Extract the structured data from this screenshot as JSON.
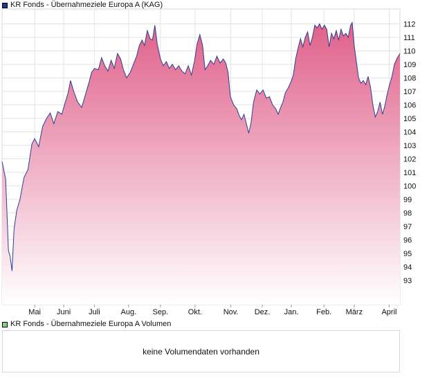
{
  "legend": {
    "price_label": "KR Fonds - Übernahmeziele Europa A (KAG)",
    "volume_label": "KR Fonds - Übernahmeziele Europa A Volumen"
  },
  "volume_panel": {
    "message": "keine Volumendaten vorhanden"
  },
  "colors": {
    "line": "#2a3f8f",
    "fill_top": "#e0608a",
    "fill_bottom": "#ffffff",
    "grid": "#e3e3e3"
  },
  "chart_data": {
    "type": "area",
    "title": "KR Fonds - Übernahmeziele Europa A (KAG)",
    "ylim": [
      91.2,
      113.1
    ],
    "y_ticks": [
      93,
      94,
      95,
      96,
      97,
      98,
      99,
      100,
      101,
      102,
      103,
      104,
      105,
      106,
      107,
      108,
      109,
      110,
      111,
      112
    ],
    "x_ticks": [
      {
        "label": "Mai",
        "t": 0.082
      },
      {
        "label": "Juni",
        "t": 0.155
      },
      {
        "label": "Juli",
        "t": 0.232
      },
      {
        "label": "Aug.",
        "t": 0.318
      },
      {
        "label": "Sep.",
        "t": 0.398
      },
      {
        "label": "Okt.",
        "t": 0.485
      },
      {
        "label": "Nov.",
        "t": 0.575
      },
      {
        "label": "Dez.",
        "t": 0.654
      },
      {
        "label": "Jan.",
        "t": 0.727
      },
      {
        "label": "Feb.",
        "t": 0.809
      },
      {
        "label": "März",
        "t": 0.885
      },
      {
        "label": "April",
        "t": 0.973
      }
    ],
    "grid": true,
    "legend_position": "top-left",
    "series": [
      {
        "name": "KR Fonds - Übernahmeziele Europa A (KAG)",
        "points": [
          [
            0.0,
            101.8
          ],
          [
            0.009,
            100.5
          ],
          [
            0.016,
            95.2
          ],
          [
            0.02,
            94.8
          ],
          [
            0.025,
            93.7
          ],
          [
            0.03,
            96.8
          ],
          [
            0.037,
            98.2
          ],
          [
            0.045,
            99.0
          ],
          [
            0.055,
            100.6
          ],
          [
            0.065,
            101.2
          ],
          [
            0.075,
            103.1
          ],
          [
            0.082,
            103.5
          ],
          [
            0.092,
            102.9
          ],
          [
            0.102,
            104.4
          ],
          [
            0.112,
            105.0
          ],
          [
            0.121,
            105.4
          ],
          [
            0.13,
            104.6
          ],
          [
            0.14,
            105.5
          ],
          [
            0.15,
            105.3
          ],
          [
            0.158,
            106.1
          ],
          [
            0.166,
            106.9
          ],
          [
            0.172,
            107.8
          ],
          [
            0.18,
            107.0
          ],
          [
            0.19,
            106.2
          ],
          [
            0.2,
            105.8
          ],
          [
            0.208,
            106.6
          ],
          [
            0.218,
            107.6
          ],
          [
            0.225,
            108.4
          ],
          [
            0.232,
            108.7
          ],
          [
            0.242,
            108.6
          ],
          [
            0.25,
            109.5
          ],
          [
            0.258,
            108.9
          ],
          [
            0.266,
            108.5
          ],
          [
            0.274,
            109.3
          ],
          [
            0.282,
            108.7
          ],
          [
            0.29,
            109.8
          ],
          [
            0.298,
            109.4
          ],
          [
            0.305,
            108.6
          ],
          [
            0.313,
            108.0
          ],
          [
            0.322,
            108.4
          ],
          [
            0.33,
            109.0
          ],
          [
            0.338,
            109.6
          ],
          [
            0.345,
            110.4
          ],
          [
            0.352,
            110.8
          ],
          [
            0.358,
            110.4
          ],
          [
            0.365,
            111.5
          ],
          [
            0.372,
            110.9
          ],
          [
            0.378,
            110.8
          ],
          [
            0.384,
            111.9
          ],
          [
            0.39,
            110.5
          ],
          [
            0.398,
            109.4
          ],
          [
            0.405,
            108.9
          ],
          [
            0.413,
            109.2
          ],
          [
            0.42,
            108.7
          ],
          [
            0.428,
            109.0
          ],
          [
            0.436,
            108.6
          ],
          [
            0.444,
            108.9
          ],
          [
            0.452,
            108.5
          ],
          [
            0.46,
            108.3
          ],
          [
            0.468,
            108.9
          ],
          [
            0.476,
            108.2
          ],
          [
            0.484,
            109.3
          ],
          [
            0.49,
            110.5
          ],
          [
            0.497,
            111.2
          ],
          [
            0.504,
            110.4
          ],
          [
            0.51,
            108.6
          ],
          [
            0.517,
            108.9
          ],
          [
            0.524,
            109.3
          ],
          [
            0.532,
            109.0
          ],
          [
            0.54,
            109.6
          ],
          [
            0.548,
            109.1
          ],
          [
            0.556,
            109.4
          ],
          [
            0.562,
            109.1
          ],
          [
            0.568,
            108.4
          ],
          [
            0.574,
            106.6
          ],
          [
            0.582,
            106.0
          ],
          [
            0.59,
            105.7
          ],
          [
            0.596,
            105.2
          ],
          [
            0.602,
            104.9
          ],
          [
            0.608,
            105.3
          ],
          [
            0.614,
            104.6
          ],
          [
            0.62,
            103.9
          ],
          [
            0.626,
            104.7
          ],
          [
            0.632,
            106.2
          ],
          [
            0.64,
            107.1
          ],
          [
            0.648,
            106.8
          ],
          [
            0.656,
            107.1
          ],
          [
            0.664,
            106.5
          ],
          [
            0.672,
            106.6
          ],
          [
            0.68,
            106.0
          ],
          [
            0.688,
            105.7
          ],
          [
            0.694,
            105.3
          ],
          [
            0.7,
            105.8
          ],
          [
            0.706,
            106.2
          ],
          [
            0.712,
            106.9
          ],
          [
            0.72,
            107.3
          ],
          [
            0.726,
            107.7
          ],
          [
            0.732,
            108.2
          ],
          [
            0.738,
            109.4
          ],
          [
            0.744,
            110.2
          ],
          [
            0.75,
            110.9
          ],
          [
            0.756,
            110.3
          ],
          [
            0.762,
            111.0
          ],
          [
            0.768,
            111.4
          ],
          [
            0.774,
            110.4
          ],
          [
            0.78,
            111.0
          ],
          [
            0.786,
            111.9
          ],
          [
            0.792,
            111.7
          ],
          [
            0.798,
            112.0
          ],
          [
            0.804,
            111.6
          ],
          [
            0.81,
            111.9
          ],
          [
            0.816,
            111.6
          ],
          [
            0.822,
            110.3
          ],
          [
            0.828,
            111.3
          ],
          [
            0.834,
            110.9
          ],
          [
            0.84,
            111.5
          ],
          [
            0.846,
            110.8
          ],
          [
            0.852,
            111.6
          ],
          [
            0.858,
            111.1
          ],
          [
            0.864,
            111.3
          ],
          [
            0.87,
            111.0
          ],
          [
            0.876,
            111.9
          ],
          [
            0.88,
            112.1
          ],
          [
            0.885,
            110.4
          ],
          [
            0.89,
            109.3
          ],
          [
            0.896,
            108.0
          ],
          [
            0.902,
            107.6
          ],
          [
            0.908,
            107.8
          ],
          [
            0.914,
            107.5
          ],
          [
            0.92,
            108.1
          ],
          [
            0.926,
            107.3
          ],
          [
            0.932,
            106.0
          ],
          [
            0.938,
            105.1
          ],
          [
            0.944,
            105.5
          ],
          [
            0.95,
            106.2
          ],
          [
            0.956,
            105.3
          ],
          [
            0.962,
            105.9
          ],
          [
            0.968,
            106.8
          ],
          [
            0.974,
            107.5
          ],
          [
            0.98,
            108.1
          ],
          [
            0.986,
            109.0
          ],
          [
            0.992,
            109.4
          ],
          [
            1.0,
            109.8
          ]
        ]
      }
    ]
  }
}
